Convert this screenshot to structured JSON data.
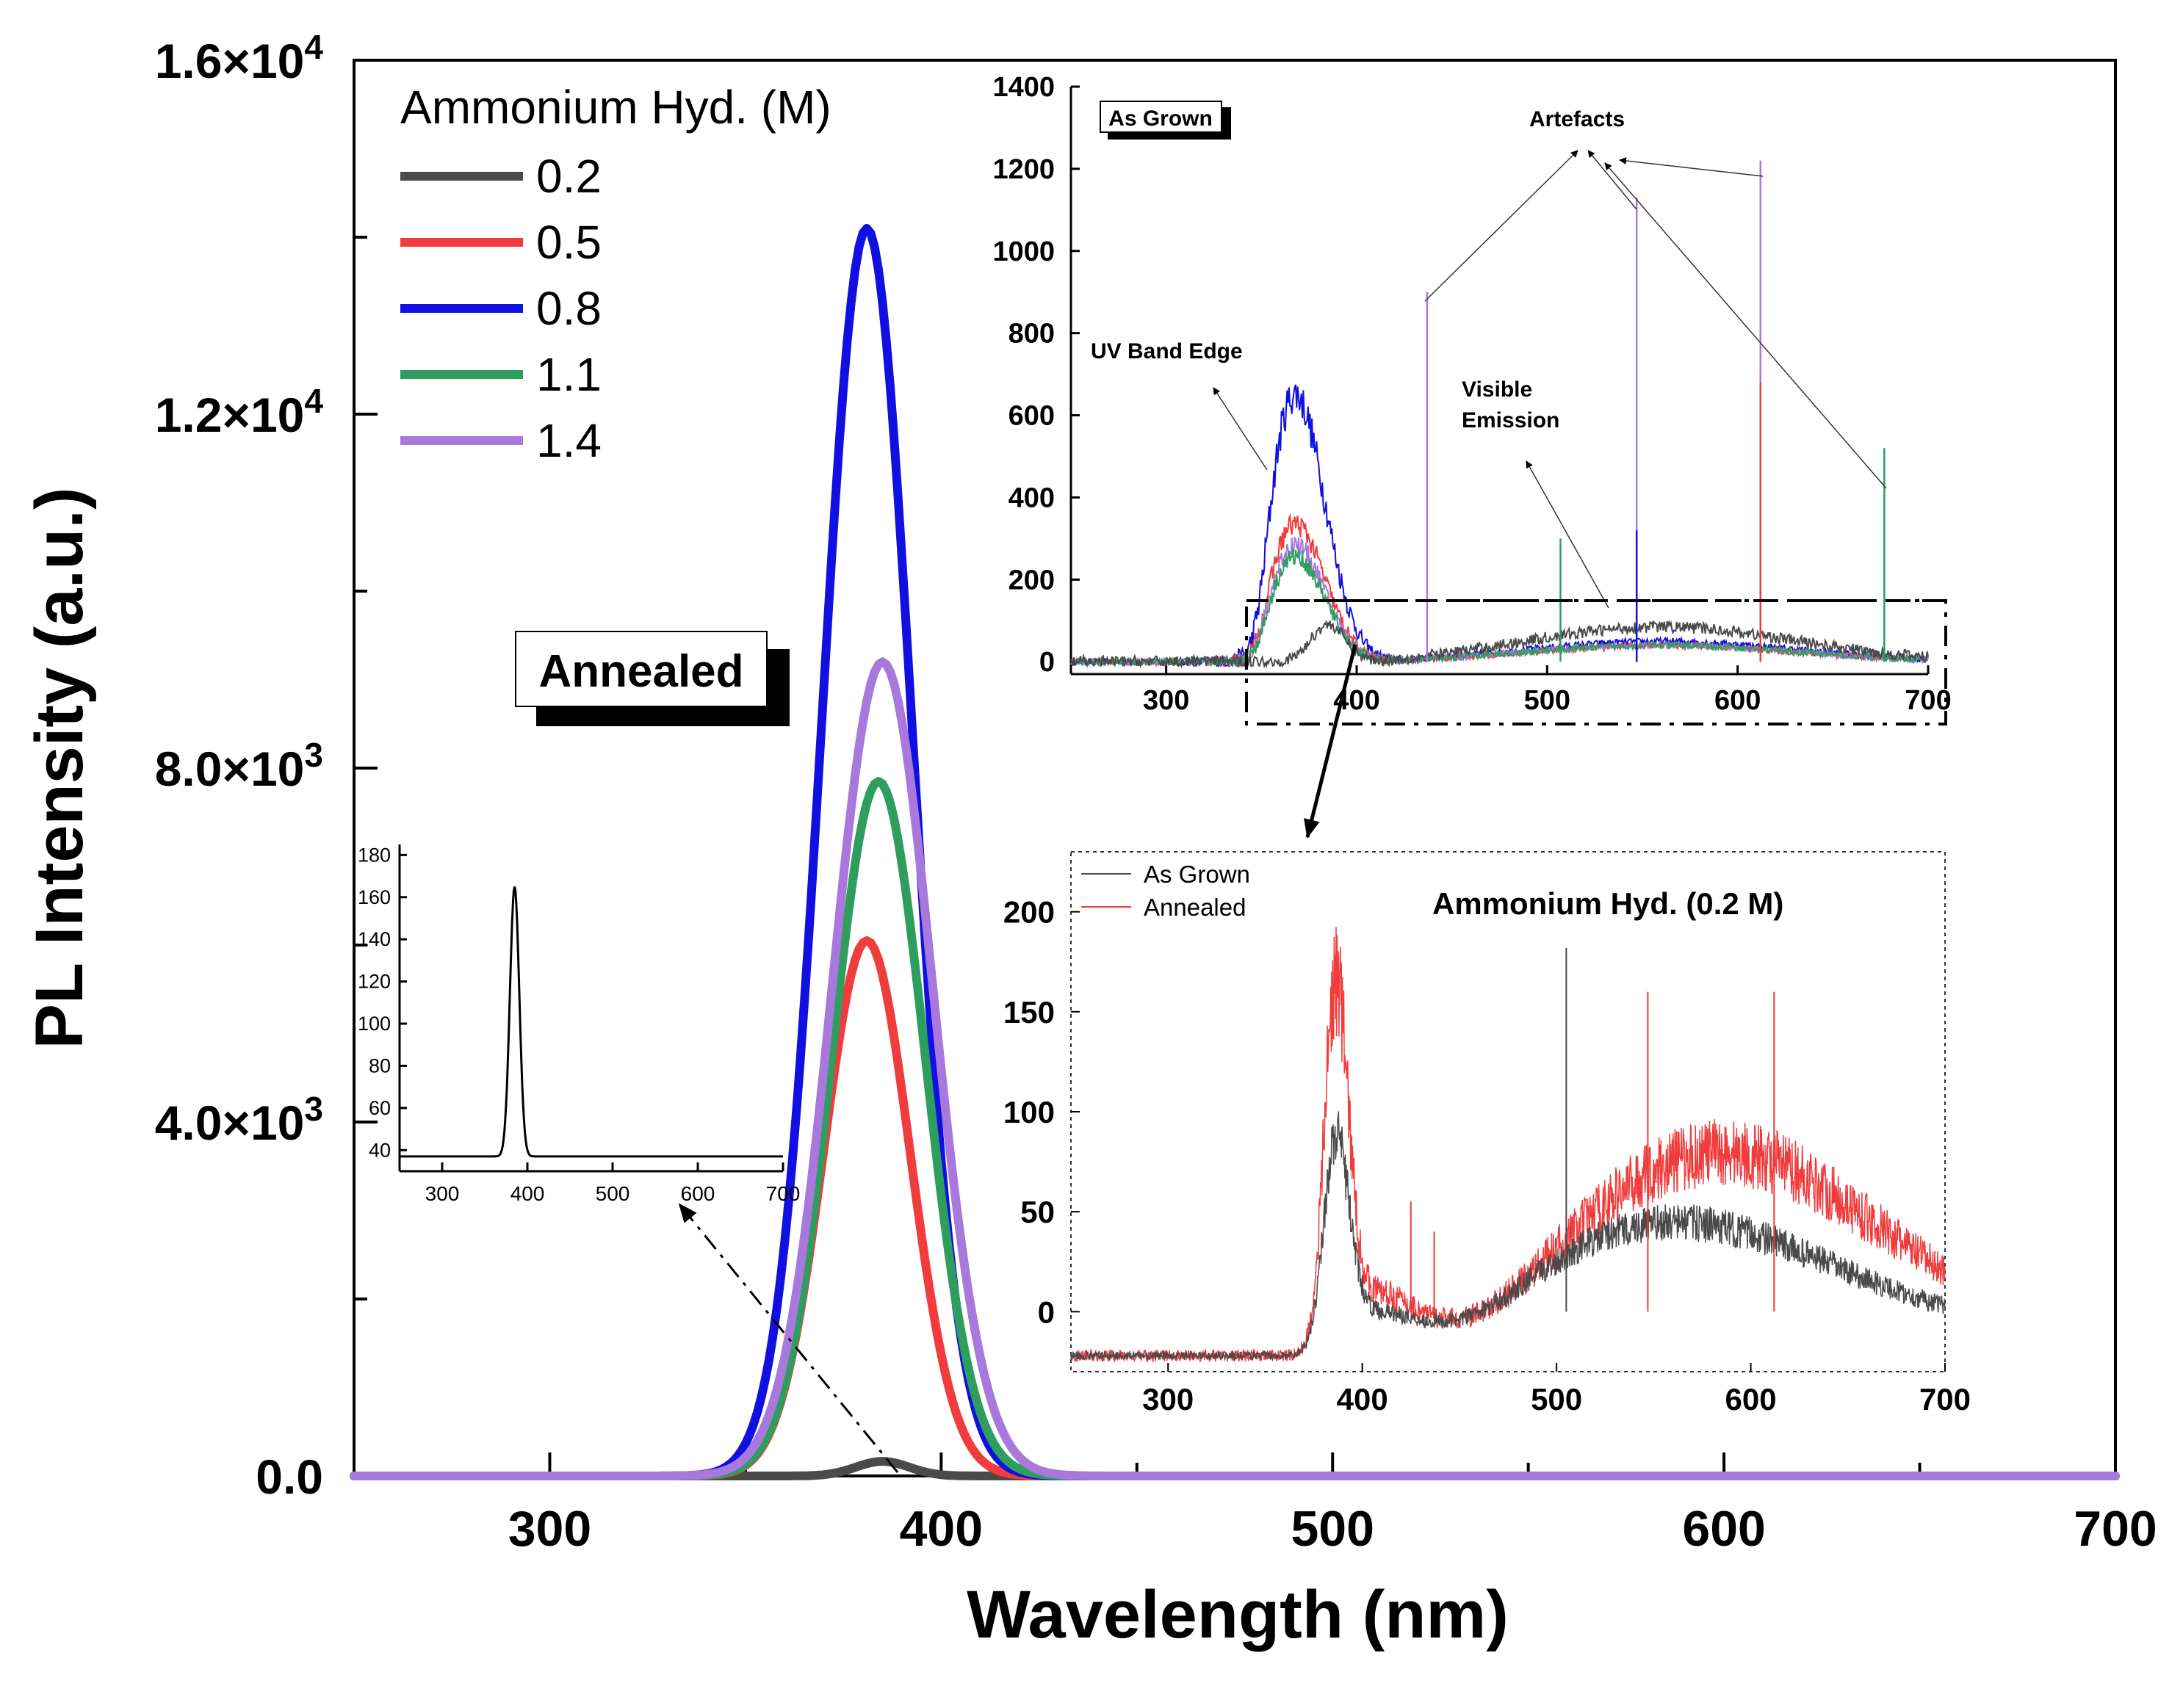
{
  "chart_data": [
    {
      "id": "main",
      "type": "line",
      "title": "",
      "xlabel": "Wavelength (nm)",
      "ylabel": "PL Intensity (a.u.)",
      "xlim": [
        250,
        700
      ],
      "ylim": [
        0,
        16000
      ],
      "xticks": [
        300,
        400,
        500,
        600,
        700
      ],
      "xtick_labels": [
        "300",
        "400",
        "500",
        "600",
        "700"
      ],
      "yticks": [
        0,
        4000,
        8000,
        12000,
        16000
      ],
      "ytick_labels": [
        {
          "base": "0.0",
          "exp": ""
        },
        {
          "base": "4.0×10",
          "exp": "3"
        },
        {
          "base": "8.0×10",
          "exp": "3"
        },
        {
          "base": "1.2×10",
          "exp": "4"
        },
        {
          "base": "1.6×10",
          "exp": "4"
        }
      ],
      "annotation": "Annealed",
      "legend": {
        "title": "Ammonium Hyd. (M)",
        "position": "top-left",
        "entries": [
          "0.2",
          "0.5",
          "0.8",
          "1.1",
          "1.4"
        ]
      },
      "series": [
        {
          "name": "0.2",
          "color": "#4a4a4a",
          "peak_wavelength": 385,
          "peak_intensity": 165,
          "fwhm": 16
        },
        {
          "name": "0.5",
          "color": "#f03c3c",
          "peak_wavelength": 381,
          "peak_intensity": 6050,
          "fwhm": 26
        },
        {
          "name": "0.8",
          "color": "#1010e0",
          "peak_wavelength": 381,
          "peak_intensity": 14100,
          "fwhm": 27
        },
        {
          "name": "1.1",
          "color": "#2e9e5e",
          "peak_wavelength": 384,
          "peak_intensity": 7850,
          "fwhm": 28
        },
        {
          "name": "1.4",
          "color": "#a878dc",
          "peak_wavelength": 385,
          "peak_intensity": 9200,
          "fwhm": 30
        }
      ]
    },
    {
      "id": "inset-zoom-0.2M",
      "type": "line",
      "xlim": [
        250,
        700
      ],
      "ylim": [
        30,
        185
      ],
      "xticks": [
        300,
        400,
        500,
        600,
        700
      ],
      "xtick_labels": [
        "300",
        "400",
        "500",
        "600",
        "700"
      ],
      "yticks": [
        40,
        60,
        80,
        100,
        120,
        140,
        160,
        180
      ],
      "ytick_labels": [
        "40",
        "60",
        "80",
        "100",
        "120",
        "140",
        "160",
        "180"
      ],
      "series": [
        {
          "name": "0.2",
          "color": "#000000",
          "peak_wavelength": 385,
          "peak_intensity": 165,
          "baseline": 37
        }
      ]
    },
    {
      "id": "inset-as-grown",
      "type": "line",
      "title": "As Grown",
      "xlim": [
        250,
        700
      ],
      "ylim": [
        -30,
        1400
      ],
      "xticks": [
        300,
        400,
        500,
        600,
        700
      ],
      "xtick_labels": [
        "300",
        "400",
        "500",
        "600",
        "700"
      ],
      "yticks": [
        0,
        200,
        400,
        600,
        800,
        1000,
        1200,
        1400
      ],
      "ytick_labels": [
        "0",
        "200",
        "400",
        "600",
        "800",
        "1000",
        "1200",
        "1400"
      ],
      "annotations": [
        "Artefacts",
        "UV Band Edge",
        "Visible",
        "Emission"
      ],
      "series": [
        {
          "name": "0.2",
          "color": "#4a4a4a",
          "uv_peak": 90,
          "visible_peak": 85
        },
        {
          "name": "0.5",
          "color": "#f03c3c",
          "uv_peak": 340,
          "visible_peak": 40
        },
        {
          "name": "0.8",
          "color": "#1010e0",
          "uv_peak": 660,
          "visible_peak": 50
        },
        {
          "name": "1.1",
          "color": "#2e9e5e",
          "uv_peak": 260,
          "visible_peak": 40
        },
        {
          "name": "1.4",
          "color": "#a878dc",
          "uv_peak": 290,
          "visible_peak": 40
        }
      ]
    },
    {
      "id": "inset-comparison",
      "type": "line",
      "title": "Ammonium Hyd. (0.2 M)",
      "xlim": [
        250,
        700
      ],
      "ylim": [
        -30,
        230
      ],
      "xticks": [
        300,
        400,
        500,
        600,
        700
      ],
      "xtick_labels": [
        "300",
        "400",
        "500",
        "600",
        "700"
      ],
      "yticks": [
        0,
        50,
        100,
        150,
        200
      ],
      "ytick_labels": [
        "0",
        "50",
        "100",
        "150",
        "200"
      ],
      "legend": {
        "position": "top-left",
        "entries": [
          "As Grown",
          "Annealed"
        ]
      },
      "series": [
        {
          "name": "As Grown",
          "color": "#4a4a4a",
          "uv_peak": 95,
          "visible_peak": 55
        },
        {
          "name": "Annealed",
          "color": "#f03c3c",
          "uv_peak": 170,
          "visible_peak": 90
        }
      ]
    }
  ]
}
